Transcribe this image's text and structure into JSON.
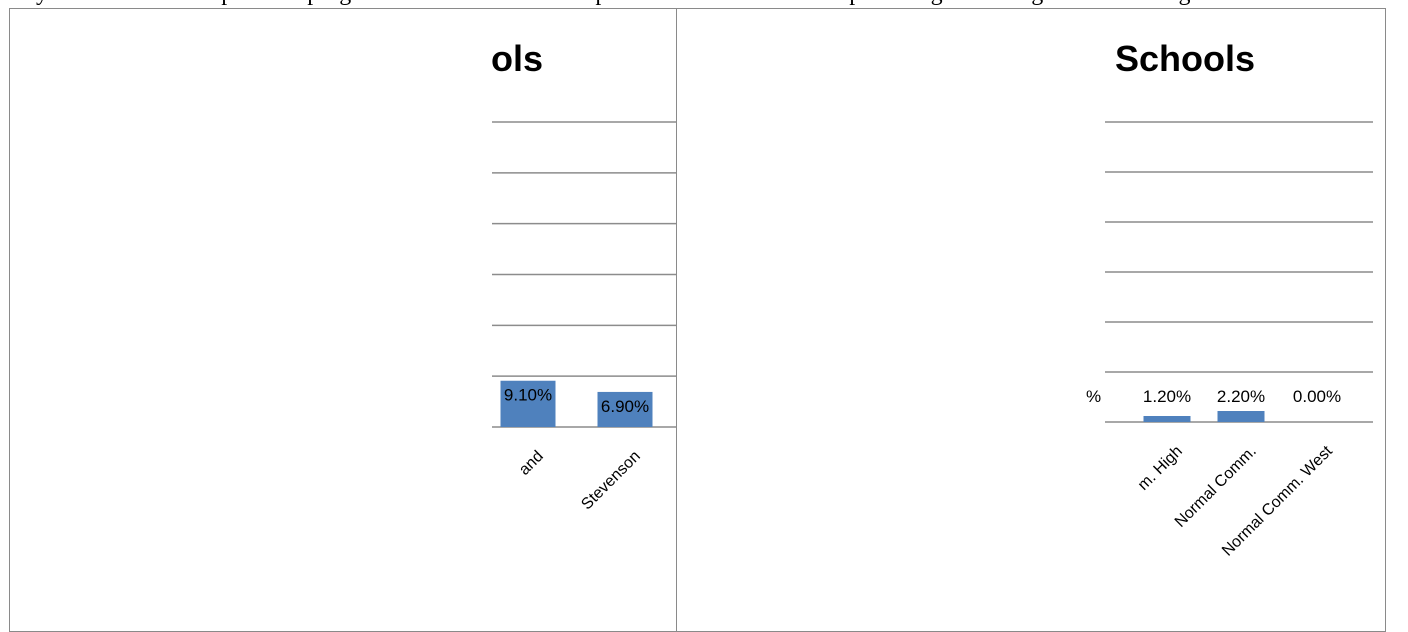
{
  "page": {
    "top_text": "... by school district as part of a program evaluation. The data presented below is for the percentage of teen girls who have given birth."
  },
  "chart_data": [
    {
      "type": "bar",
      "title": "ols",
      "xlabel": "",
      "ylabel": "",
      "categories": [
        "and",
        "Stevenson"
      ],
      "values": [
        9.1,
        6.9
      ],
      "value_labels": [
        "9.10%",
        "6.90%"
      ],
      "ylim": [
        0,
        60
      ],
      "grid": true,
      "color": "#4f81bd"
    },
    {
      "type": "bar",
      "title": "Schools",
      "xlabel": "",
      "ylabel": "",
      "categories": [
        "m. High",
        "Normal Comm.",
        "Normal Comm. West"
      ],
      "values": [
        1.2,
        2.2,
        0.0
      ],
      "value_labels": [
        "1.20%",
        "2.20%",
        "0.00%"
      ],
      "partial_value_label": "%",
      "ylim": [
        0,
        60
      ],
      "grid": true,
      "color": "#4f81bd"
    }
  ]
}
